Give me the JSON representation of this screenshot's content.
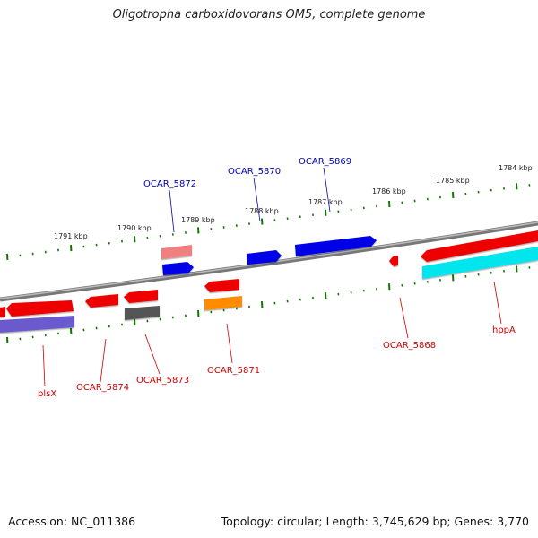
{
  "title": "Oligotropha carboxidovorans OM5, complete genome",
  "footer": {
    "accession": "Accession: NC_011386",
    "summary": "Topology: circular; Length: 3,745,629 bp; Genes: 3,770"
  },
  "ticks": [
    "1791 kbp",
    "1790 kbp",
    "1789 kbp",
    "1788 kbp",
    "1787 kbp",
    "1786 kbp",
    "1785 kbp",
    "1784 kbp"
  ],
  "gene_labels_top": [
    "OCAR_5872",
    "OCAR_5870",
    "OCAR_5869"
  ],
  "gene_labels_bottom": [
    "plsX",
    "OCAR_5874",
    "OCAR_5873",
    "OCAR_5871",
    "OCAR_5868",
    "hppA"
  ],
  "colors": {
    "forward_gene": "#0000e8",
    "reverse_gene": "#ee0000",
    "tick": "#117700",
    "backbone": "#888888",
    "top_label": "#0000aa",
    "bottom_label": "#cc0000",
    "light_red": "#f08080",
    "gray_gene": "#555555",
    "orange_gene": "#ff8c00",
    "purple_gene": "#6a5acd",
    "cyan_gene": "#00e5ee"
  }
}
